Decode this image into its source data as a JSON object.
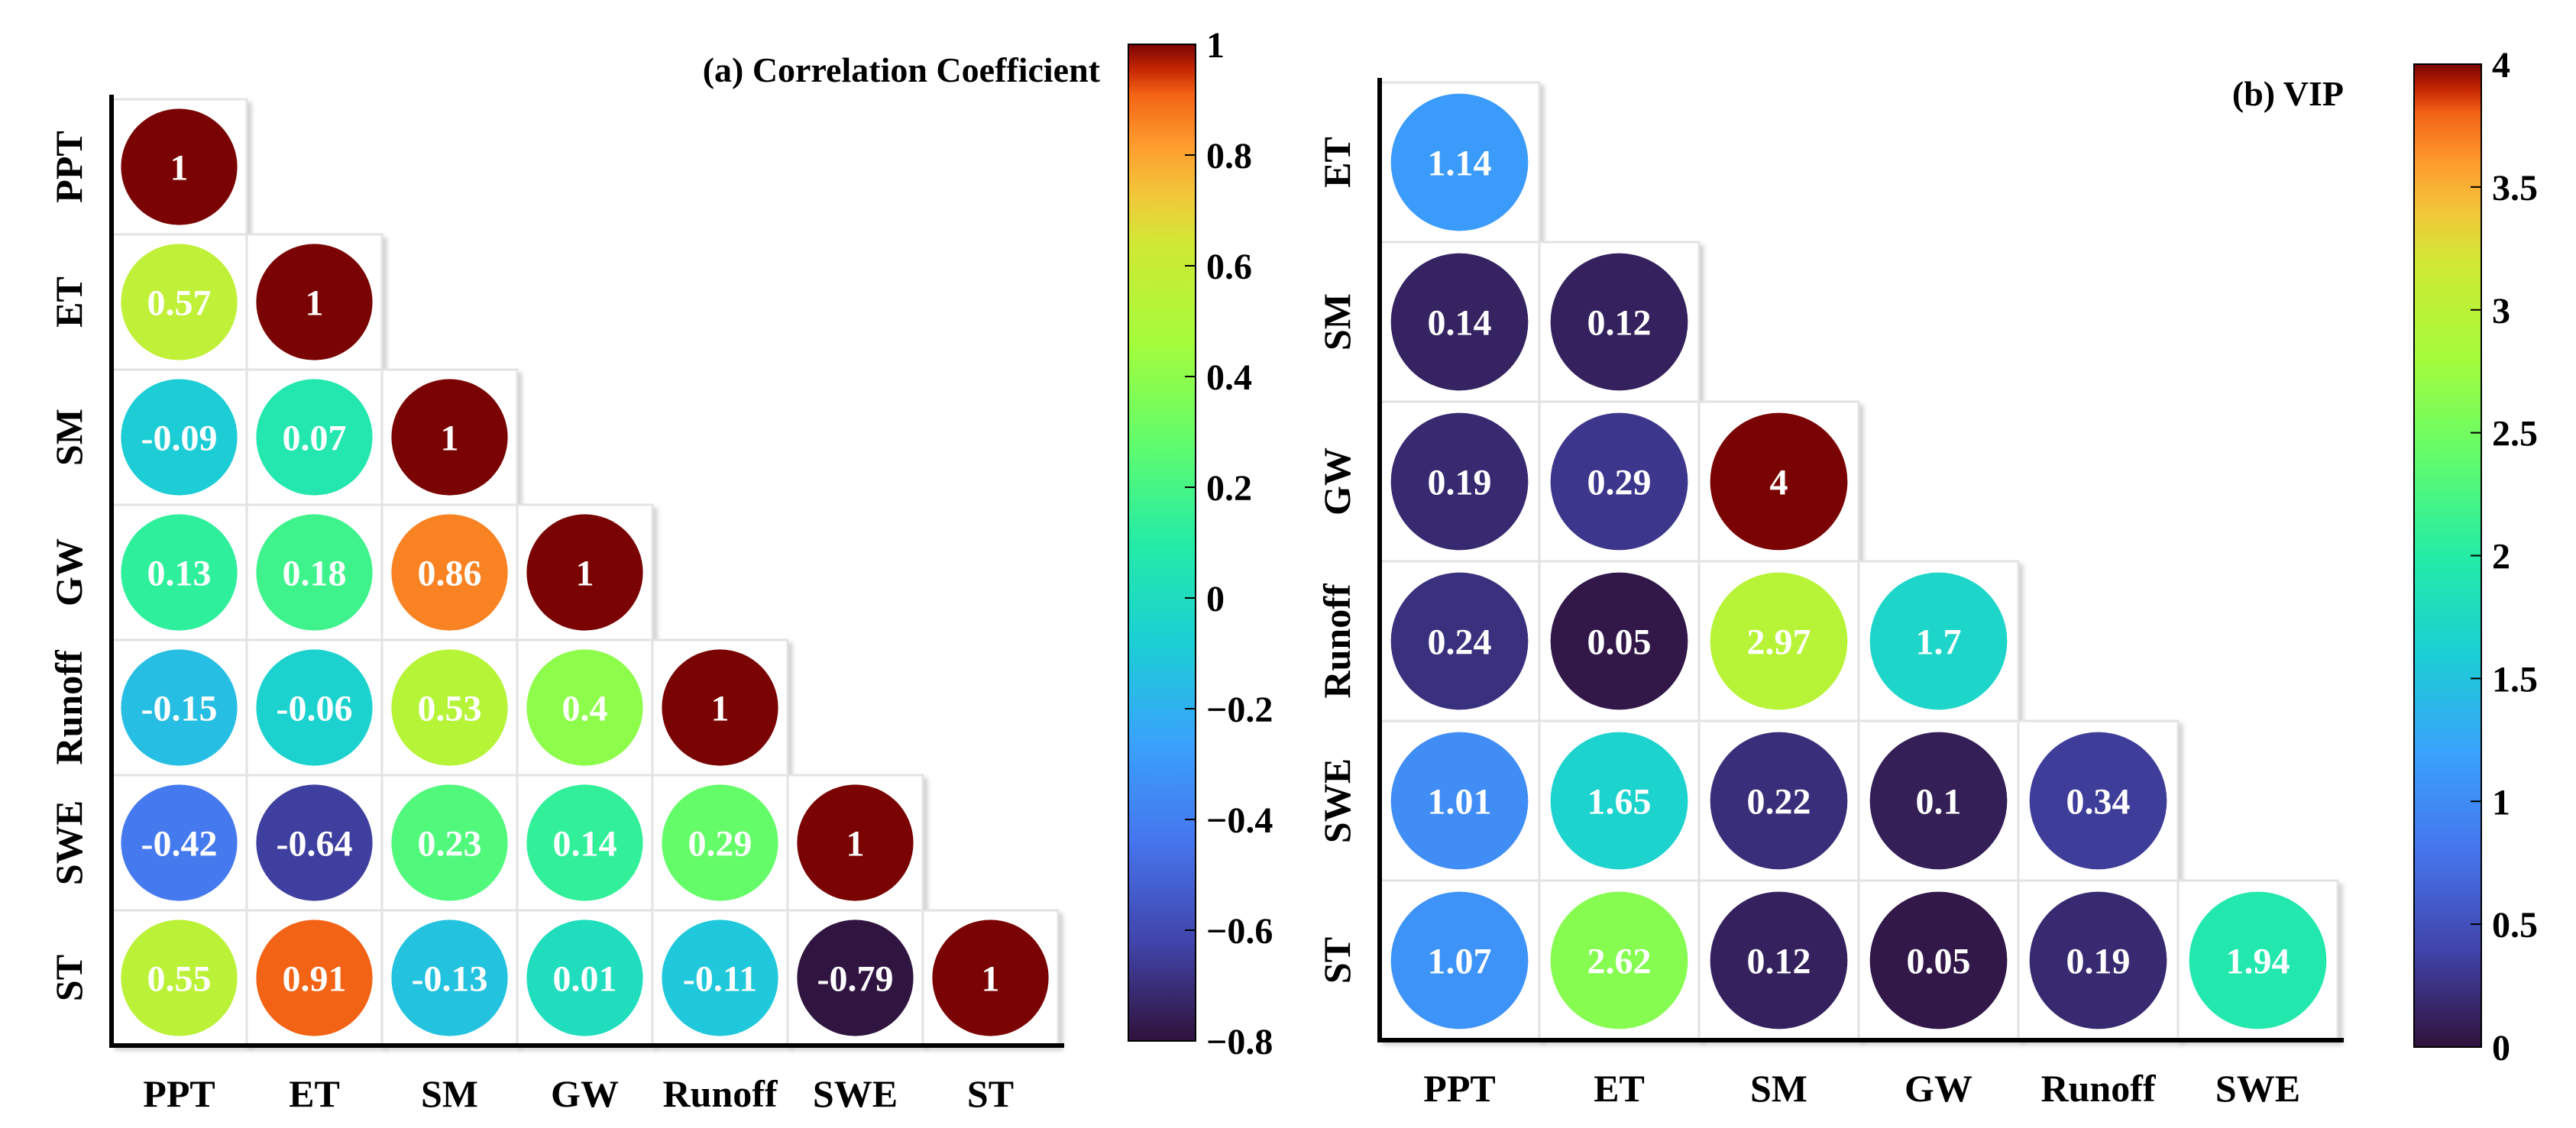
{
  "chart_data": [
    {
      "type": "heatmap",
      "title": "(a) Correlation  Coefficient",
      "row_labels": [
        "PPT",
        "ET",
        "SM",
        "GW",
        "Runoff",
        "SWE",
        "ST"
      ],
      "col_labels": [
        "PPT",
        "ET",
        "SM",
        "GW",
        "Runoff",
        "SWE",
        "ST"
      ],
      "cells": [
        [
          "1"
        ],
        [
          "0.57",
          "1"
        ],
        [
          "-0.09",
          "0.07",
          "1"
        ],
        [
          "0.13",
          "0.18",
          "0.86",
          "1"
        ],
        [
          "-0.15",
          "-0.06",
          "0.53",
          "0.4",
          "1"
        ],
        [
          "-0.42",
          "-0.64",
          "0.23",
          "0.14",
          "0.29",
          "1"
        ],
        [
          "0.55",
          "0.91",
          "-0.13",
          "0.01",
          "-0.11",
          "-0.79",
          "1"
        ]
      ],
      "colorbar": {
        "range": [
          -0.8,
          1
        ],
        "ticks": [
          1,
          0.8,
          0.6,
          0.4,
          0.2,
          0,
          -0.2,
          -0.4,
          -0.6,
          -0.8
        ],
        "tick_labels": [
          "1",
          "0.8",
          "0.6",
          "0.4",
          "0.2",
          "0",
          "−0.2",
          "−0.4",
          "−0.6",
          "−0.8"
        ]
      }
    },
    {
      "type": "heatmap",
      "title": "(b) VIP",
      "row_labels": [
        "ET",
        "SM",
        "GW",
        "Runoff",
        "SWE",
        "ST"
      ],
      "col_labels": [
        "PPT",
        "ET",
        "SM",
        "GW",
        "Runoff",
        "SWE"
      ],
      "cells": [
        [
          "1.14"
        ],
        [
          "0.14",
          "0.12"
        ],
        [
          "0.19",
          "0.29",
          "4"
        ],
        [
          "0.24",
          "0.05",
          "2.97",
          "1.7"
        ],
        [
          "1.01",
          "1.65",
          "0.22",
          "0.1",
          "0.34"
        ],
        [
          "1.07",
          "2.62",
          "0.12",
          "0.05",
          "0.19",
          "1.94"
        ]
      ],
      "colorbar": {
        "range": [
          0,
          4
        ],
        "ticks": [
          4,
          3.5,
          3,
          2.5,
          2,
          1.5,
          1,
          0.5,
          0
        ],
        "tick_labels": [
          "4",
          "3.5",
          "3",
          "2.5",
          "2",
          "1.5",
          "1",
          "0.5",
          "0"
        ]
      }
    }
  ]
}
